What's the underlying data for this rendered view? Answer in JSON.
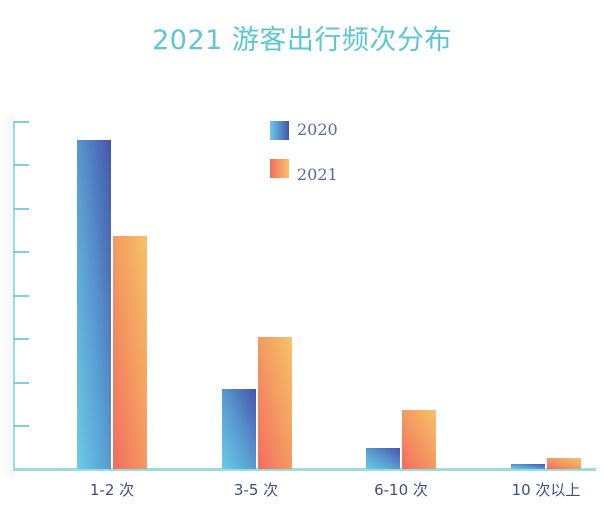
{
  "chart_data": {
    "type": "bar",
    "title": "2021 游客出行频次分布",
    "xlabel": "",
    "ylabel": "",
    "categories": [
      "1-2 次",
      "3-5 次",
      "6-10 次",
      "10 次以上"
    ],
    "series": [
      {
        "name": "2020",
        "values": [
          7.56,
          1.84,
          0.48,
          0.11
        ],
        "color_start": "#6acbe9",
        "color_end": "#4456aa"
      },
      {
        "name": "2021",
        "values": [
          5.36,
          3.03,
          1.36,
          0.25
        ],
        "color_start": "#f36b5f",
        "color_end": "#f6c268"
      }
    ],
    "ylim": [
      0,
      8
    ],
    "y_ticks_count": 9,
    "y_tick_labels_visible": false,
    "grid": false,
    "legend_position": "top-center-inside",
    "value_units_note": "relative heights in y-tick intervals (no tick labels shown)"
  },
  "title": "2021 游客出行频次分布",
  "legend": [
    {
      "label": "2020"
    },
    {
      "label": "2021"
    }
  ],
  "x_labels": [
    "1-2 次",
    "3-5 次",
    "6-10 次",
    "10 次以上"
  ],
  "colors": {
    "title": "#5cc6d6",
    "axis": "#9adbe5",
    "label": "#3e4e86"
  }
}
